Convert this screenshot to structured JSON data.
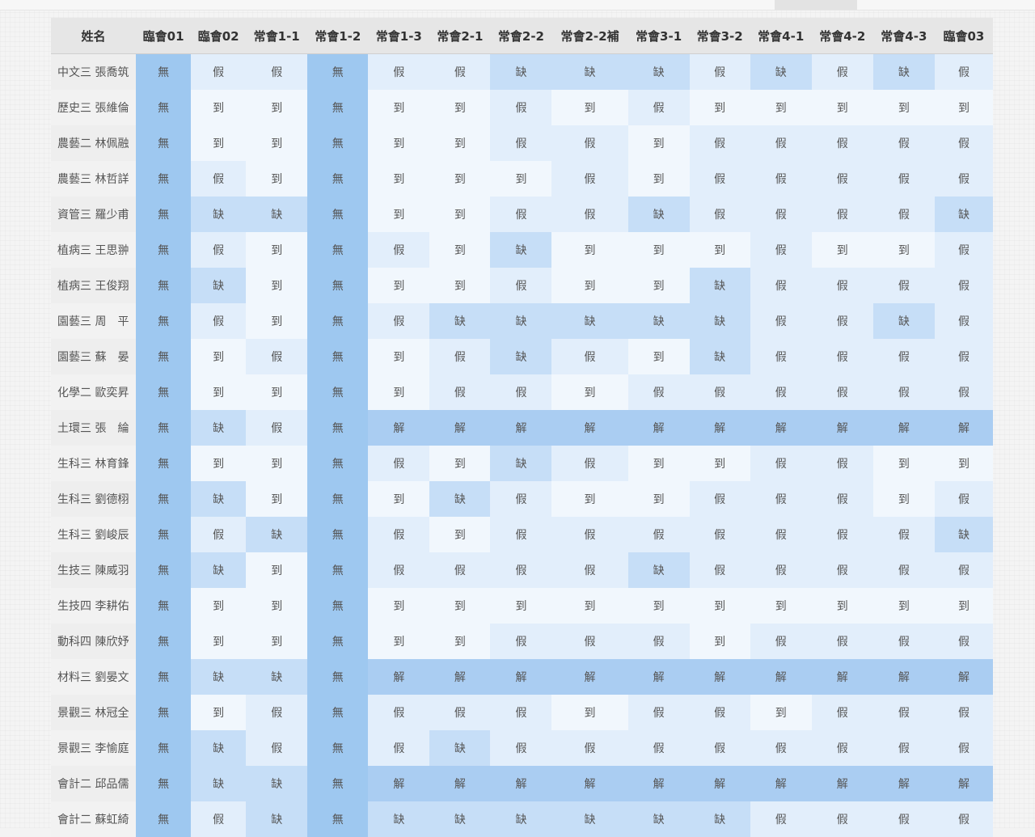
{
  "table": {
    "columns": [
      "姓名",
      "臨會01",
      "臨會02",
      "常會1-1",
      "常會1-2",
      "常會1-3",
      "常會2-1",
      "常會2-2",
      "常會2-2補",
      "常會3-1",
      "常會3-2",
      "常會4-1",
      "常會4-2",
      "常會4-3",
      "臨會03"
    ],
    "rows": [
      {
        "name": "中文三 張喬筑",
        "values": [
          "無",
          "假",
          "假",
          "無",
          "假",
          "假",
          "缺",
          "缺",
          "缺",
          "假",
          "缺",
          "假",
          "缺",
          "假"
        ]
      },
      {
        "name": "歷史三 張維倫",
        "values": [
          "無",
          "到",
          "到",
          "無",
          "到",
          "到",
          "假",
          "到",
          "假",
          "到",
          "到",
          "到",
          "到",
          "到"
        ]
      },
      {
        "name": "農藝二 林佩融",
        "values": [
          "無",
          "到",
          "到",
          "無",
          "到",
          "到",
          "假",
          "假",
          "到",
          "假",
          "假",
          "假",
          "假",
          "假"
        ]
      },
      {
        "name": "農藝三 林哲詳",
        "values": [
          "無",
          "假",
          "到",
          "無",
          "到",
          "到",
          "到",
          "假",
          "到",
          "假",
          "假",
          "假",
          "假",
          "假"
        ]
      },
      {
        "name": "資管三 羅少甫",
        "values": [
          "無",
          "缺",
          "缺",
          "無",
          "到",
          "到",
          "假",
          "假",
          "缺",
          "假",
          "假",
          "假",
          "假",
          "缺"
        ]
      },
      {
        "name": "植病三 王思翀",
        "values": [
          "無",
          "假",
          "到",
          "無",
          "假",
          "到",
          "缺",
          "到",
          "到",
          "到",
          "假",
          "到",
          "到",
          "假"
        ]
      },
      {
        "name": "植病三 王俊翔",
        "values": [
          "無",
          "缺",
          "到",
          "無",
          "到",
          "到",
          "假",
          "到",
          "到",
          "缺",
          "假",
          "假",
          "假",
          "假"
        ]
      },
      {
        "name": "園藝三 周　平",
        "values": [
          "無",
          "假",
          "到",
          "無",
          "假",
          "缺",
          "缺",
          "缺",
          "缺",
          "缺",
          "假",
          "假",
          "缺",
          "假"
        ]
      },
      {
        "name": "園藝三 蘇　晏",
        "values": [
          "無",
          "到",
          "假",
          "無",
          "到",
          "假",
          "缺",
          "假",
          "到",
          "缺",
          "假",
          "假",
          "假",
          "假"
        ]
      },
      {
        "name": "化學二 歐奕昇",
        "values": [
          "無",
          "到",
          "到",
          "無",
          "到",
          "假",
          "假",
          "到",
          "假",
          "假",
          "假",
          "假",
          "假",
          "假"
        ]
      },
      {
        "name": "土環三 張　綸",
        "values": [
          "無",
          "缺",
          "假",
          "無",
          "解",
          "解",
          "解",
          "解",
          "解",
          "解",
          "解",
          "解",
          "解",
          "解"
        ]
      },
      {
        "name": "生科三 林育鋒",
        "values": [
          "無",
          "到",
          "到",
          "無",
          "假",
          "到",
          "缺",
          "假",
          "到",
          "到",
          "假",
          "假",
          "到",
          "到"
        ]
      },
      {
        "name": "生科三 劉德栩",
        "values": [
          "無",
          "缺",
          "到",
          "無",
          "到",
          "缺",
          "假",
          "到",
          "到",
          "假",
          "假",
          "假",
          "到",
          "假"
        ]
      },
      {
        "name": "生科三 劉峻辰",
        "values": [
          "無",
          "假",
          "缺",
          "無",
          "假",
          "到",
          "假",
          "假",
          "假",
          "假",
          "假",
          "假",
          "假",
          "缺"
        ]
      },
      {
        "name": "生技三 陳威羽",
        "values": [
          "無",
          "缺",
          "到",
          "無",
          "假",
          "假",
          "假",
          "假",
          "缺",
          "假",
          "假",
          "假",
          "假",
          "假"
        ]
      },
      {
        "name": "生技四 李耕佑",
        "values": [
          "無",
          "到",
          "到",
          "無",
          "到",
          "到",
          "到",
          "到",
          "到",
          "到",
          "到",
          "到",
          "到",
          "到"
        ]
      },
      {
        "name": "動科四 陳欣妤",
        "values": [
          "無",
          "到",
          "到",
          "無",
          "到",
          "到",
          "假",
          "假",
          "假",
          "到",
          "假",
          "假",
          "假",
          "假"
        ]
      },
      {
        "name": "材料三 劉晏文",
        "values": [
          "無",
          "缺",
          "缺",
          "無",
          "解",
          "解",
          "解",
          "解",
          "解",
          "解",
          "解",
          "解",
          "解",
          "解"
        ]
      },
      {
        "name": "景觀三 林冠全",
        "values": [
          "無",
          "到",
          "假",
          "無",
          "假",
          "假",
          "假",
          "到",
          "假",
          "假",
          "到",
          "假",
          "假",
          "假"
        ]
      },
      {
        "name": "景觀三 李愉庭",
        "values": [
          "無",
          "缺",
          "假",
          "無",
          "假",
          "缺",
          "假",
          "假",
          "假",
          "假",
          "假",
          "假",
          "假",
          "假"
        ]
      },
      {
        "name": "會計二 邱品儒",
        "values": [
          "無",
          "缺",
          "缺",
          "無",
          "解",
          "解",
          "解",
          "解",
          "解",
          "解",
          "解",
          "解",
          "解",
          "解"
        ]
      },
      {
        "name": "會計二 蘇虹綺",
        "values": [
          "無",
          "假",
          "缺",
          "無",
          "缺",
          "缺",
          "缺",
          "缺",
          "缺",
          "缺",
          "假",
          "假",
          "假",
          "假"
        ]
      }
    ]
  },
  "colors": {
    "無": "#9ec8f0",
    "到": "#f1f7fd",
    "假": "#e2eefb",
    "缺": "#c6def7",
    "解": "#aacdf2",
    "header_bg": "#e6e6e6",
    "name_bg": "#eeeeee"
  }
}
